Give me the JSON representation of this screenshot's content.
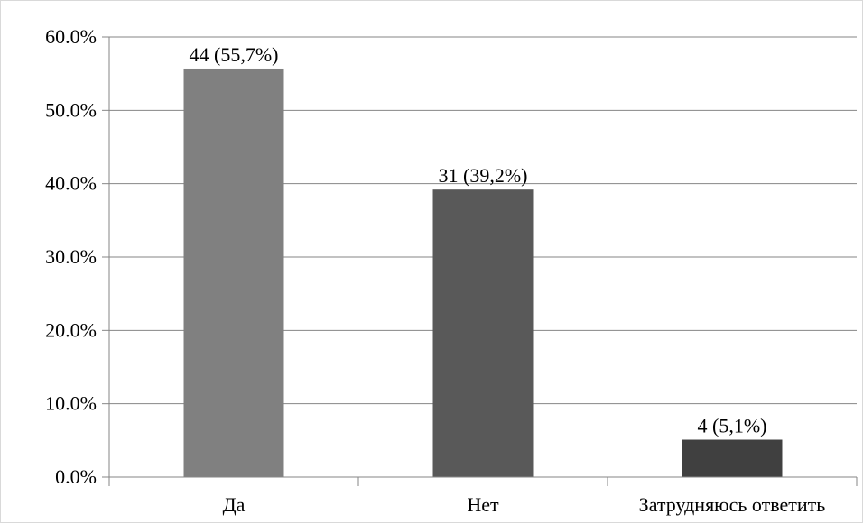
{
  "chart_data": {
    "type": "bar",
    "title": "",
    "xlabel": "",
    "ylabel": "",
    "categories": [
      "Да",
      "Нет",
      "Затрудняюсь ответить"
    ],
    "values": [
      55.7,
      39.2,
      5.1
    ],
    "data_labels": [
      "44 (55,7%)",
      "31 (39,2%)",
      "4 (5,1%)"
    ],
    "colors": [
      "#808080",
      "#595959",
      "#404040"
    ],
    "ylim": [
      0,
      60
    ],
    "y_ticks": [
      0,
      10,
      20,
      30,
      40,
      50,
      60
    ],
    "y_tick_labels": [
      "0.0%",
      "10.0%",
      "20.0%",
      "30.0%",
      "40.0%",
      "50.0%",
      "60.0%"
    ],
    "grid": true,
    "legend": "none",
    "gridline_color": "#868686",
    "axis_color": "#868686"
  }
}
